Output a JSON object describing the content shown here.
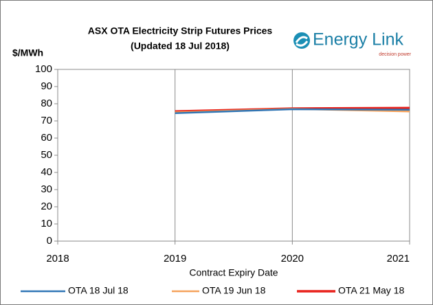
{
  "chart_data": {
    "type": "line",
    "title": "ASX OTA Electricity Strip Futures Prices",
    "subtitle": "(Updated 18 Jul 2018)",
    "logo": {
      "name": "Energy Link",
      "tagline": "decision power"
    },
    "y_label": "$/MWh",
    "x_label": "Contract Expiry Date",
    "x": [
      2019,
      2020,
      2021
    ],
    "series": [
      {
        "name": "OTA 18 Jul 18",
        "color": "#2f75b5",
        "values": [
          74.5,
          76.8,
          76.5
        ]
      },
      {
        "name": "OTA 19 Jun 18",
        "color": "#f5a15a",
        "values": [
          75,
          77,
          75.5
        ]
      },
      {
        "name": "OTA 21 May 18",
        "color": "#e8211b",
        "values": [
          75.5,
          77.2,
          77.5
        ]
      }
    ],
    "xlim": [
      2018,
      2021
    ],
    "xticks": [
      2018,
      2019,
      2020,
      2021
    ],
    "ylim": [
      0,
      100
    ],
    "yticks": [
      0,
      10,
      20,
      30,
      40,
      50,
      60,
      70,
      80,
      90,
      100
    ],
    "grid": "x",
    "legend": "bottom"
  }
}
